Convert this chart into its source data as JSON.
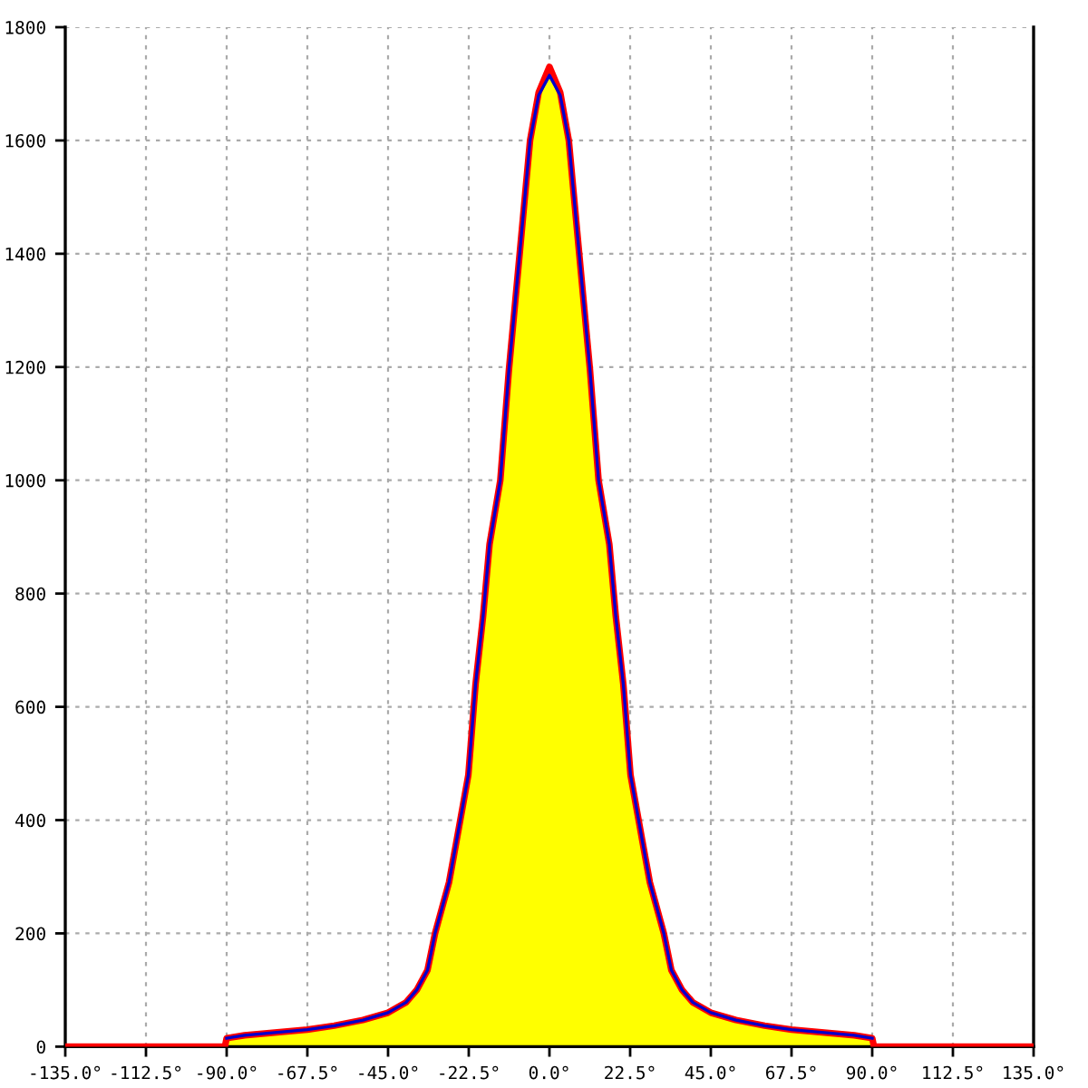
{
  "chart_data": {
    "type": "line",
    "x": [
      -90,
      -85,
      -78,
      -67.5,
      -60,
      -52,
      -45,
      -40,
      -37,
      -34,
      -31.9,
      -28,
      -26,
      -22.6,
      -20.6,
      -18.5,
      -16.7,
      -13.7,
      -11.3,
      -8.3,
      -5.4,
      -3,
      0,
      3,
      5.4,
      8.3,
      11.3,
      13.7,
      16.7,
      18.5,
      20.6,
      22.6,
      26,
      28,
      31.9,
      34,
      37,
      40,
      45,
      52,
      60,
      67.5,
      78,
      85,
      90
    ],
    "series": [
      {
        "type": "area",
        "color": "#ffff00",
        "values": [
          15,
          20,
          24,
          30,
          37,
          47,
          60,
          78,
          100,
          135,
          200,
          290,
          360,
          480,
          640,
          760,
          887,
          1000,
          1195,
          1400,
          1600,
          1680,
          1715,
          1680,
          1600,
          1400,
          1195,
          1000,
          887,
          760,
          640,
          480,
          360,
          290,
          200,
          135,
          100,
          78,
          60,
          47,
          37,
          30,
          24,
          20,
          15
        ]
      },
      {
        "color": "#0000cc",
        "values": [
          15,
          20,
          24,
          30,
          37,
          47,
          60,
          78,
          100,
          135,
          200,
          290,
          360,
          480,
          640,
          760,
          887,
          1000,
          1195,
          1400,
          1600,
          1680,
          1715,
          1680,
          1600,
          1400,
          1195,
          1000,
          887,
          760,
          640,
          480,
          360,
          290,
          200,
          135,
          100,
          78,
          60,
          47,
          37,
          30,
          24,
          20,
          15
        ]
      },
      {
        "color": "#ff0000",
        "x": [
          -135,
          -90.5,
          -90,
          -85,
          -78,
          -67.5,
          -60,
          -52,
          -45,
          -40,
          -37,
          -34,
          -31.9,
          -28,
          -26,
          -22.6,
          -20.6,
          -18.5,
          -16.7,
          -13.7,
          -11.3,
          -8.3,
          -5.4,
          -3,
          0,
          3,
          5.4,
          8.3,
          11.3,
          13.7,
          16.7,
          18.5,
          20.6,
          22.6,
          26,
          28,
          31.9,
          34,
          37,
          40,
          45,
          52,
          60,
          67.5,
          78,
          85,
          90,
          90.5,
          135
        ],
        "values": [
          0,
          0,
          15,
          20,
          24,
          30,
          37,
          47,
          60,
          78,
          100,
          135,
          200,
          290,
          360,
          480,
          640,
          760,
          887,
          1000,
          1195,
          1400,
          1600,
          1685,
          1730,
          1685,
          1600,
          1400,
          1195,
          1000,
          887,
          760,
          640,
          480,
          360,
          290,
          200,
          135,
          100,
          78,
          60,
          47,
          37,
          30,
          24,
          20,
          15,
          0,
          0
        ]
      }
    ],
    "xlim": [
      -135,
      135
    ],
    "xticks": [
      {
        "value": -135,
        "label": "-135.0°"
      },
      {
        "value": -112.5,
        "label": "-112.5°"
      },
      {
        "value": -90,
        "label": "-90.0°"
      },
      {
        "value": -67.5,
        "label": "-67.5°"
      },
      {
        "value": -45,
        "label": "-45.0°"
      },
      {
        "value": -22.5,
        "label": "-22.5°"
      },
      {
        "value": 0,
        "label": "0.0°"
      },
      {
        "value": 22.5,
        "label": "22.5°"
      },
      {
        "value": 45,
        "label": "45.0°"
      },
      {
        "value": 67.5,
        "label": "67.5°"
      },
      {
        "value": 90,
        "label": "90.0°"
      },
      {
        "value": 112.5,
        "label": "112.5°"
      },
      {
        "value": 135,
        "label": "135.0°"
      }
    ],
    "ylim": [
      0,
      1800
    ],
    "yticks": [
      0,
      200,
      400,
      600,
      800,
      1000,
      1200,
      1400,
      1600,
      1800
    ],
    "grid": true,
    "line_style": "solid"
  }
}
